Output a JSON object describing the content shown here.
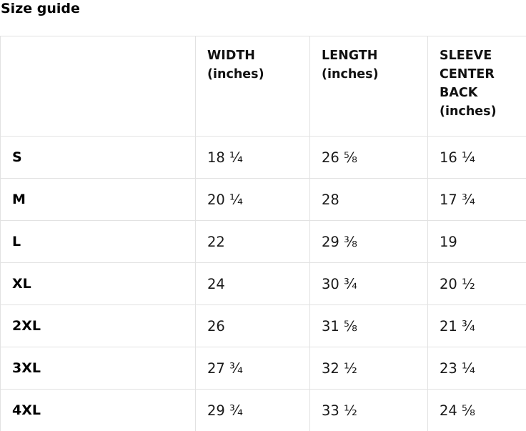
{
  "page": {
    "title": "Size guide"
  },
  "size_table": {
    "columns": [
      {
        "label": ""
      },
      {
        "label": "WIDTH (inches)"
      },
      {
        "label": "LENGTH (inches)"
      },
      {
        "label": "SLEEVE CENTER BACK (inches)"
      }
    ],
    "rows": [
      {
        "size": "S",
        "width": "18 ¼",
        "length": "26 ⅝",
        "sleeve": "16 ¼"
      },
      {
        "size": "M",
        "width": "20 ¼",
        "length": "28",
        "sleeve": "17 ¾"
      },
      {
        "size": "L",
        "width": "22",
        "length": "29 ⅜",
        "sleeve": "19"
      },
      {
        "size": "XL",
        "width": "24",
        "length": "30 ¾",
        "sleeve": "20 ½"
      },
      {
        "size": "2XL",
        "width": "26",
        "length": "31 ⅝",
        "sleeve": "21 ¾"
      },
      {
        "size": "3XL",
        "width": "27 ¾",
        "length": "32 ½",
        "sleeve": "23 ¼"
      },
      {
        "size": "4XL",
        "width": "29 ¾",
        "length": "33 ½",
        "sleeve": "24 ⅝"
      }
    ],
    "colors": {
      "border": "#e2e2e2",
      "text": "#1a1a1a",
      "heading_text": "#000000",
      "background": "#ffffff"
    }
  }
}
